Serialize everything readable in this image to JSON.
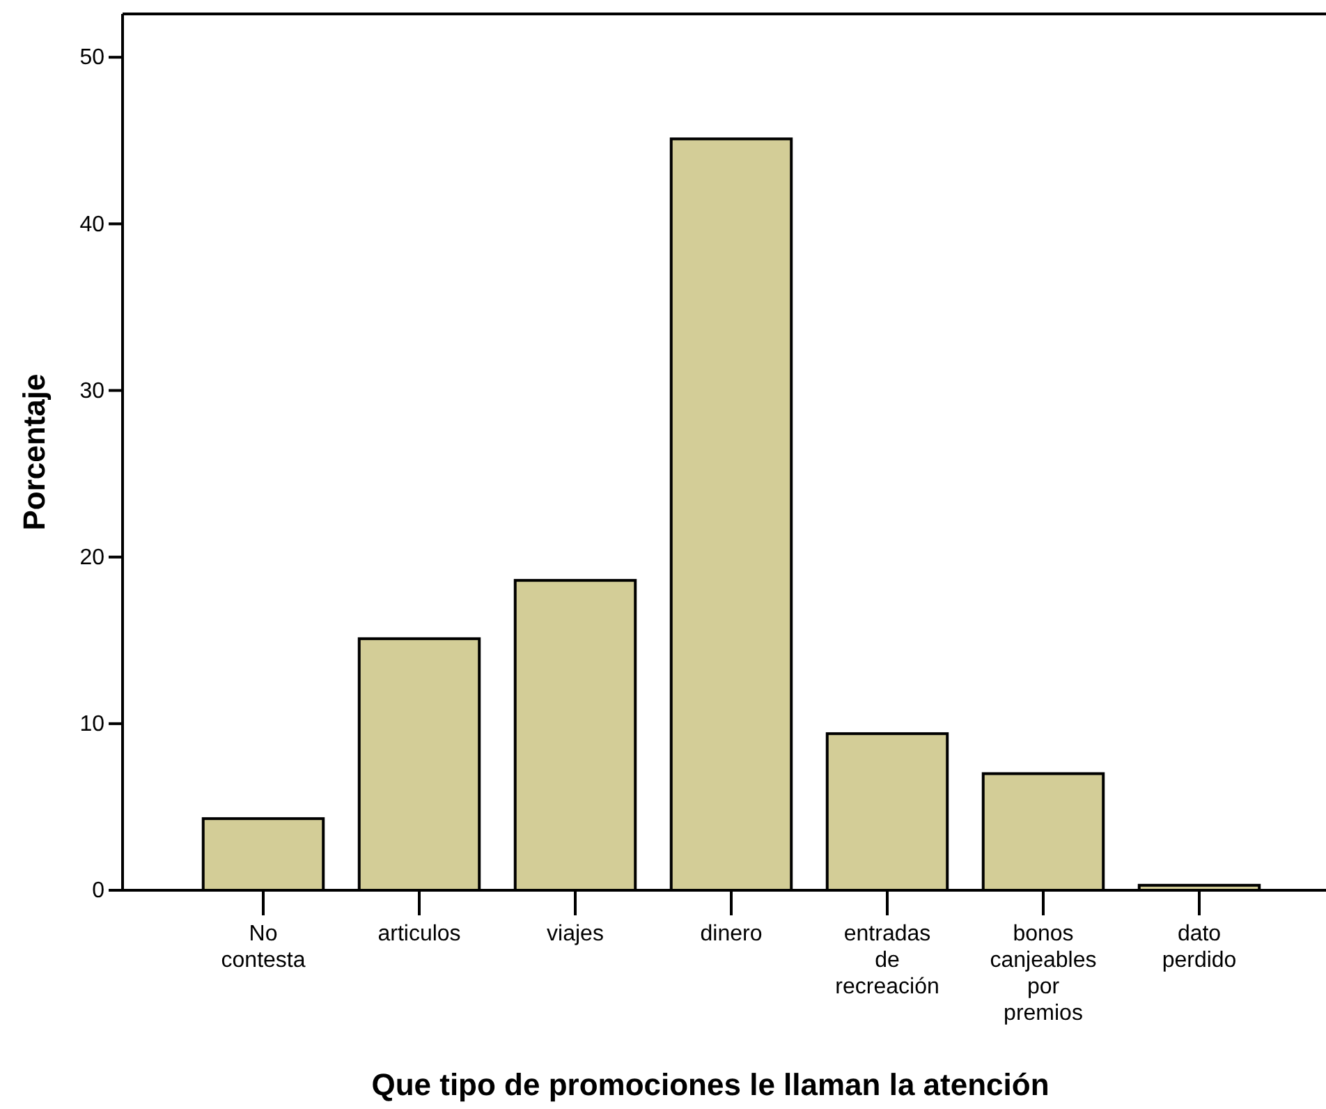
{
  "chart_data": {
    "type": "bar",
    "xlabel": "Que tipo de promociones le llaman la atención",
    "ylabel": "Porcentaje",
    "categories": [
      "No contesta",
      "articulos",
      "viajes",
      "dinero",
      "entradas de recreación",
      "bonos canjeables por premios",
      "dato perdido"
    ],
    "values": [
      4.3,
      15.1,
      18.6,
      45.1,
      9.4,
      7.0,
      0.3
    ],
    "color": "#d3cd97",
    "ylim": [
      0,
      52.6
    ],
    "yticks": [
      0,
      10,
      20,
      30,
      40,
      50
    ],
    "grid": false
  }
}
